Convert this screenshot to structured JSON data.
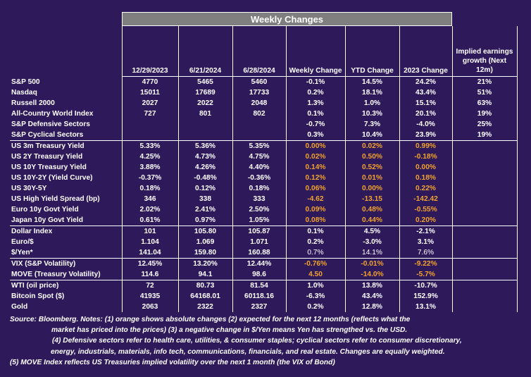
{
  "title": "Weekly Changes",
  "columns": [
    "12/29/2023",
    "6/21/2024",
    "6/28/2024",
    "Weekly Change",
    "YTD Change",
    "2023 Change",
    "Implied earnings growth (Next 12m)"
  ],
  "rows": [
    {
      "label": "S&P 500",
      "v": [
        "4770",
        "5465",
        "5460",
        "-0.1%",
        "14.5%",
        "24.2%",
        "21%"
      ]
    },
    {
      "label": "Nasdaq",
      "v": [
        "15011",
        "17689",
        "17733",
        "0.2%",
        "18.1%",
        "43.4%",
        "51%"
      ]
    },
    {
      "label": "Russell 2000",
      "v": [
        "2027",
        "2022",
        "2048",
        "1.3%",
        "1.0%",
        "15.1%",
        "63%"
      ]
    },
    {
      "label": "All-Country World Index",
      "v": [
        "727",
        "801",
        "802",
        "0.1%",
        "10.3%",
        "20.1%",
        "19%"
      ]
    },
    {
      "label": "S&P Defensive Sectors",
      "v": [
        "",
        "",
        "",
        "-0.7%",
        "7.3%",
        "-4.0%",
        "25%"
      ]
    },
    {
      "label": "S&P Cyclical Sectors",
      "v": [
        "",
        "",
        "",
        "0.3%",
        "10.4%",
        "23.9%",
        "19%"
      ]
    },
    {
      "label": "US 3m Treasury Yield",
      "v": [
        "5.33%",
        "5.36%",
        "5.35%",
        "0.00%",
        "0.02%",
        "0.99%",
        ""
      ]
    },
    {
      "label": "US 2Y Treasury Yield",
      "v": [
        "4.25%",
        "4.73%",
        "4.75%",
        "0.02%",
        "0.50%",
        "-0.18%",
        ""
      ]
    },
    {
      "label": "US 10Y Treasury Yield",
      "v": [
        "3.88%",
        "4.26%",
        "4.40%",
        "0.14%",
        "0.52%",
        "0.00%",
        ""
      ]
    },
    {
      "label": "US 10Y-2Y (Yield Curve)",
      "v": [
        "-0.37%",
        "-0.48%",
        "-0.36%",
        "0.12%",
        "0.01%",
        "0.18%",
        ""
      ]
    },
    {
      "label": "US 30Y-5Y",
      "v": [
        "0.18%",
        "0.12%",
        "0.18%",
        "0.06%",
        "0.00%",
        "0.22%",
        ""
      ]
    },
    {
      "label": "US High Yield Spread (bp)",
      "v": [
        "346",
        "338",
        "333",
        "-4.62",
        "-13.15",
        "-142.42",
        ""
      ]
    },
    {
      "label": "Euro 10y Govt Yield",
      "v": [
        "2.02%",
        "2.41%",
        "2.50%",
        "0.09%",
        "0.48%",
        "-0.55%",
        ""
      ]
    },
    {
      "label": "Japan 10y Govt Yield",
      "v": [
        "0.61%",
        "0.97%",
        "1.05%",
        "0.08%",
        "0.44%",
        "0.20%",
        ""
      ]
    },
    {
      "label": "Dollar Index",
      "v": [
        "101",
        "105.80",
        "105.87",
        "0.1%",
        "4.5%",
        "-2.1%",
        ""
      ]
    },
    {
      "label": "Euro/$",
      "v": [
        "1.104",
        "1.069",
        "1.071",
        "0.2%",
        "-3.0%",
        "3.1%",
        ""
      ]
    },
    {
      "label": "$/Yen*",
      "v": [
        "141.04",
        "159.80",
        "160.88",
        "0.7%",
        "14.1%",
        "7.6%",
        ""
      ]
    },
    {
      "label": "VIX (S&P Volatility)",
      "v": [
        "12.45%",
        "13.20%",
        "12.44%",
        "-0.76%",
        "-0.01%",
        "-9.22%",
        ""
      ]
    },
    {
      "label": "MOVE (Treasury Volatility)",
      "v": [
        "114.6",
        "94.1",
        "98.6",
        "4.50",
        "-14.0%",
        "-5.7%",
        ""
      ]
    },
    {
      "label": "WTI (oil price)",
      "v": [
        "72",
        "80.73",
        "81.54",
        "1.0%",
        "13.8%",
        "-10.7%",
        ""
      ]
    },
    {
      "label": "Bitcoin Spot ($)",
      "v": [
        "41935",
        "64168.01",
        "60118.16",
        "-6.3%",
        "43.4%",
        "152.9%",
        ""
      ]
    },
    {
      "label": "Gold",
      "v": [
        "2063",
        "2322",
        "2327",
        "0.2%",
        "12.8%",
        "13.1%",
        ""
      ]
    }
  ],
  "notes": [
    "Source: Bloomberg. Notes: (1) orange shows absolute changes (2) expected for the next 12 months (reflects what the",
    "market has priced into the prices) (3) a negative change in $/Yen means Yen has strengthed vs. the USD.",
    "(4) Defensive sectors refer to health care, utilities, & consumer staples; cyclical sectors refer to consumer discretionary,",
    "energy, industrials, materials, info tech, communications, financials, and real estate. Changes are equally weighted.",
    "(5) MOVE Index reflects US Treasuries implied volatility over the next 1 month (the VIX of Bond)"
  ],
  "colors": {
    "background": "#2e1a5a",
    "header": "#7f7f7f",
    "orange": "#f2a22d",
    "text": "#ffffff"
  }
}
